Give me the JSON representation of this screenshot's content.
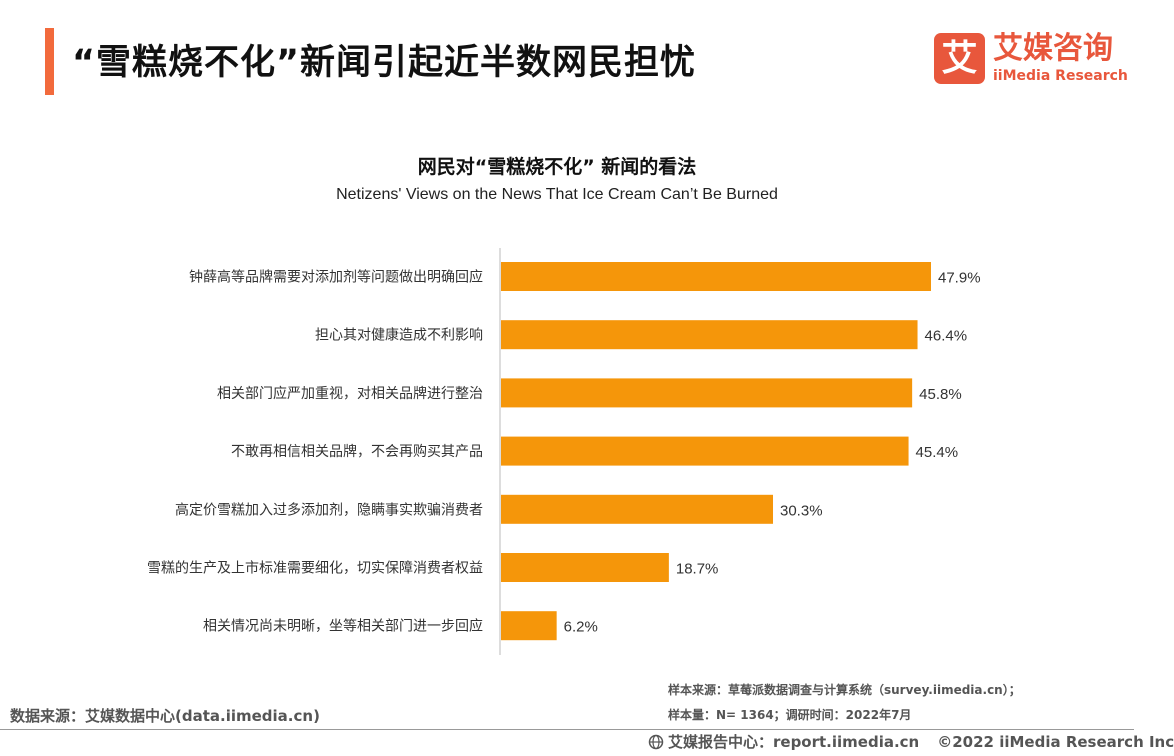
{
  "header": {
    "title": "“雪糕烧不化”新闻引起近半数网民担忧",
    "logo_mark": "艾",
    "logo_cn": "艾媒咨询",
    "logo_en": "iiMedia Research"
  },
  "colors": {
    "accent": "#f26a3c",
    "brand": "#e8573c",
    "bar": "#f5960a"
  },
  "chart_data": {
    "type": "bar",
    "orientation": "horizontal",
    "title": "网民对“雪糕烧不化” 新闻的看法",
    "subtitle": "Netizens' Views on the News That Ice Cream Can’t Be Burned",
    "categories": [
      "钟薛高等品牌需要对添加剂等问题做出明确回应",
      "担心其对健康造成不利影响",
      "相关部门应严加重视，对相关品牌进行整治",
      "不敢再相信相关品牌，不会再购买其产品",
      "高定价雪糕加入过多添加剂，隐瞒事实欺骗消费者",
      "雪糕的生产及上市标准需要细化，切实保障消费者权益",
      "相关情况尚未明晰，坐等相关部门进一步回应"
    ],
    "values": [
      47.9,
      46.4,
      45.8,
      45.4,
      30.3,
      18.7,
      6.2
    ],
    "value_labels": [
      "47.9%",
      "46.4%",
      "45.8%",
      "45.4%",
      "30.3%",
      "18.7%",
      "6.2%"
    ],
    "unit": "%",
    "xlim": [
      0,
      60
    ],
    "grid": false
  },
  "footer": {
    "source_left": "数据来源：艾媒数据中心(data.iimedia.cn)",
    "note_sample_source": "样本来源：草莓派数据调查与计算系统（survey.iimedia.cn）；",
    "note_sample_size": "样本量：N= 1364；调研时间：2022年7月",
    "report_center": "艾媒报告中心：report.iimedia.cn",
    "copyright": "©2022  iiMedia Research  Inc"
  }
}
